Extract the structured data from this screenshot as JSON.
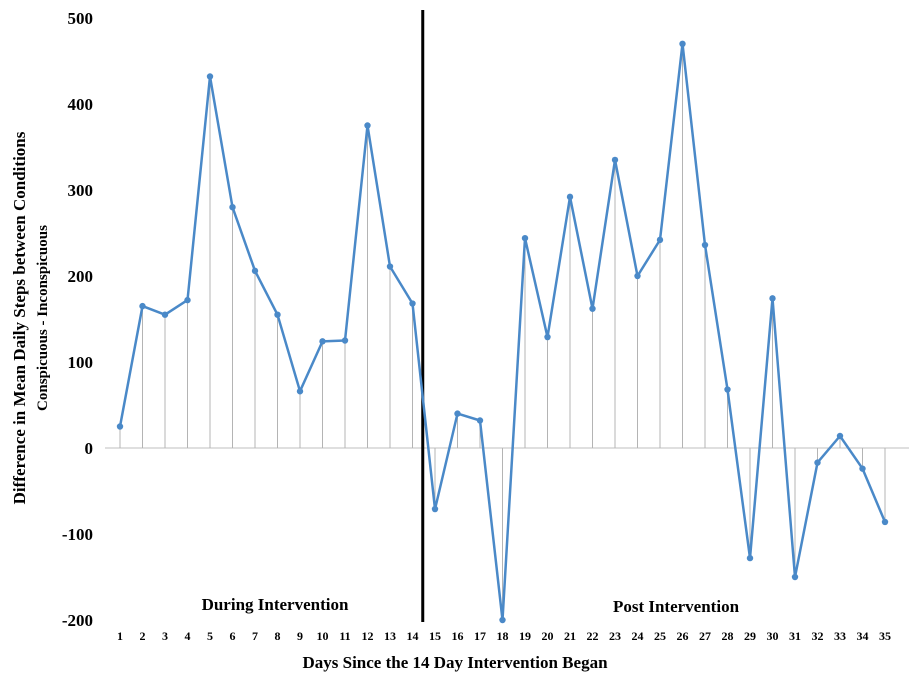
{
  "chart_data": {
    "type": "line",
    "x": [
      1,
      2,
      3,
      4,
      5,
      6,
      7,
      8,
      9,
      10,
      11,
      12,
      13,
      14,
      15,
      16,
      17,
      18,
      19,
      20,
      21,
      22,
      23,
      24,
      25,
      26,
      27,
      28,
      29,
      30,
      31,
      32,
      33,
      34,
      35
    ],
    "tick_labels": [
      "1",
      "2",
      "3",
      "4",
      "5",
      "6",
      "7",
      "8",
      "9",
      "10",
      "11",
      "12",
      "13",
      "14",
      "15",
      "16",
      "17",
      "18",
      "19",
      "20",
      "21",
      "22",
      "23",
      "24",
      "25",
      "26",
      "27",
      "28",
      "29",
      "30",
      "31",
      "32",
      "33",
      "34",
      "35"
    ],
    "series": [
      {
        "values": [
          25,
          165,
          155,
          172,
          432,
          280,
          206,
          155,
          66,
          124,
          125,
          375,
          211,
          168,
          -71,
          40,
          32,
          -200,
          244,
          129,
          292,
          162,
          335,
          200,
          242,
          470,
          236,
          68,
          -128,
          174,
          -150,
          -17,
          14,
          -24,
          -86
        ]
      }
    ],
    "ylim": [
      -200,
      500
    ],
    "yticks": [
      -200,
      -100,
      0,
      100,
      200,
      300,
      400,
      500
    ],
    "xlabel": "Days Since the 14 Day Intervention Began",
    "ylabel": "Difference in Mean Daily Steps between Conditions",
    "ylabel_sub": "Conspicuous - Inconspicuous",
    "divider_after_x": 14,
    "regions": [
      "During Intervention",
      "Post Intervention"
    ],
    "drop_lines": true,
    "grid": false,
    "colors": {
      "line": "#4a89c8",
      "drop_line": "#b4b4b4",
      "divider": "#000000",
      "zero_line": "#bfbfbf"
    }
  }
}
